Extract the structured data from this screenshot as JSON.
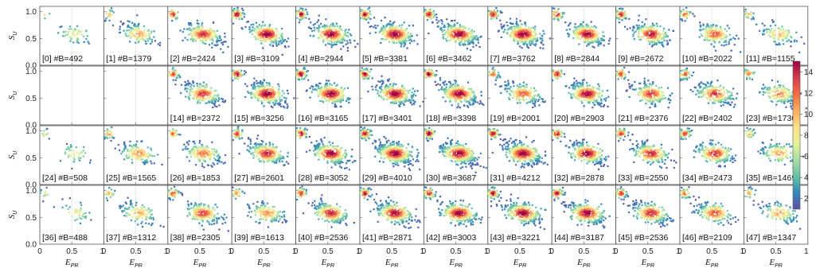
{
  "chart_data": {
    "type": "heatmap",
    "grid": {
      "rows": 4,
      "cols": 12
    },
    "xlabel": {
      "main": "E",
      "sub": "PR"
    },
    "ylabel": {
      "main": "S",
      "sub": "U"
    },
    "xlim": [
      0,
      1
    ],
    "ylim": [
      0,
      1.1
    ],
    "xticks": [
      "0",
      "0.5",
      "1"
    ],
    "yticks": [
      "0.0",
      "0.5",
      "1.0"
    ],
    "colorbar": {
      "min": 1,
      "max": 15,
      "ticks": [
        "2",
        "4",
        "6",
        "8",
        "10",
        "12",
        "14"
      ],
      "colormap": "Spectral_r",
      "colors": [
        "#5e4fa2",
        "#3288bd",
        "#66c2a5",
        "#abdda4",
        "#e6f598",
        "#fee08b",
        "#fdae61",
        "#f46d43",
        "#d53e4f",
        "#9e0142"
      ]
    },
    "panels": [
      {
        "index": 0,
        "label": "[0] #B=492",
        "count": 492
      },
      {
        "index": 1,
        "label": "[1] #B=1379",
        "count": 1379
      },
      {
        "index": 2,
        "label": "[2] #B=2424",
        "count": 2424
      },
      {
        "index": 3,
        "label": "[3] #B=3109",
        "count": 3109
      },
      {
        "index": 4,
        "label": "[4] #B=2944",
        "count": 2944
      },
      {
        "index": 5,
        "label": "[5] #B=3381",
        "count": 3381
      },
      {
        "index": 6,
        "label": "[6] #B=3462",
        "count": 3462
      },
      {
        "index": 7,
        "label": "[7] #B=3762",
        "count": 3762
      },
      {
        "index": 8,
        "label": "[8] #B=2844",
        "count": 2844
      },
      {
        "index": 9,
        "label": "[9] #B=2672",
        "count": 2672
      },
      {
        "index": 10,
        "label": "[10] #B=2022",
        "count": 2022
      },
      {
        "index": 11,
        "label": "[11] #B=1155",
        "count": 1155
      },
      {
        "index": 12,
        "label": "",
        "count": 0
      },
      {
        "index": 13,
        "label": "",
        "count": 0
      },
      {
        "index": 14,
        "label": "[14] #B=2372",
        "count": 2372
      },
      {
        "index": 15,
        "label": "[15] #B=3256",
        "count": 3256
      },
      {
        "index": 16,
        "label": "[16] #B=3165",
        "count": 3165
      },
      {
        "index": 17,
        "label": "[17] #B=3401",
        "count": 3401
      },
      {
        "index": 18,
        "label": "[18] #B=3398",
        "count": 3398
      },
      {
        "index": 19,
        "label": "[19] #B=2001",
        "count": 2001
      },
      {
        "index": 20,
        "label": "[20] #B=2903",
        "count": 2903
      },
      {
        "index": 21,
        "label": "[21] #B=2376",
        "count": 2376
      },
      {
        "index": 22,
        "label": "[22] #B=2402",
        "count": 2402
      },
      {
        "index": 23,
        "label": "[23] #B=1730",
        "count": 1730
      },
      {
        "index": 24,
        "label": "[24] #B=508",
        "count": 508
      },
      {
        "index": 25,
        "label": "[25] #B=1565",
        "count": 1565
      },
      {
        "index": 26,
        "label": "[26] #B=1853",
        "count": 1853
      },
      {
        "index": 27,
        "label": "[27] #B=2601",
        "count": 2601
      },
      {
        "index": 28,
        "label": "[28] #B=3052",
        "count": 3052
      },
      {
        "index": 29,
        "label": "[29] #B=4010",
        "count": 4010
      },
      {
        "index": 30,
        "label": "[30] #B=3687",
        "count": 3687
      },
      {
        "index": 31,
        "label": "[31] #B=4212",
        "count": 4212
      },
      {
        "index": 32,
        "label": "[32] #B=2878",
        "count": 2878
      },
      {
        "index": 33,
        "label": "[33] #B=2550",
        "count": 2550
      },
      {
        "index": 34,
        "label": "[34] #B=2473",
        "count": 2473
      },
      {
        "index": 35,
        "label": "[35] #B=1469",
        "count": 1469
      },
      {
        "index": 36,
        "label": "[36] #B=488",
        "count": 488
      },
      {
        "index": 37,
        "label": "[37] #B=1312",
        "count": 1312
      },
      {
        "index": 38,
        "label": "[38] #B=2305",
        "count": 2305
      },
      {
        "index": 39,
        "label": "[39] #B=1613",
        "count": 1613
      },
      {
        "index": 40,
        "label": "[40] #B=2536",
        "count": 2536
      },
      {
        "index": 41,
        "label": "[41] #B=2871",
        "count": 2871
      },
      {
        "index": 42,
        "label": "[42] #B=3003",
        "count": 3003
      },
      {
        "index": 43,
        "label": "[43] #B=3221",
        "count": 3221
      },
      {
        "index": 44,
        "label": "[44] #B=3187",
        "count": 3187
      },
      {
        "index": 45,
        "label": "[45] #B=2536",
        "count": 2536
      },
      {
        "index": 46,
        "label": "[46] #B=2109",
        "count": 2109
      },
      {
        "index": 47,
        "label": "[47] #B=1347",
        "count": 1347
      }
    ],
    "populations": [
      {
        "center": [
          0.08,
          0.95
        ]
      },
      {
        "center": [
          0.55,
          0.58
        ]
      }
    ]
  }
}
